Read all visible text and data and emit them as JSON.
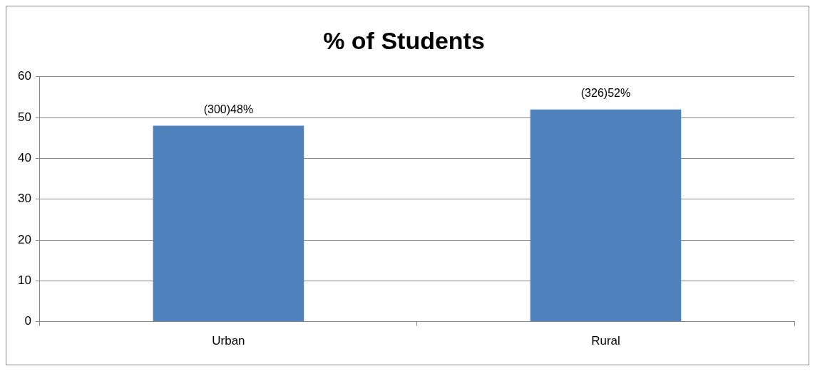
{
  "chart_data": {
    "type": "bar",
    "title": "% of Students",
    "categories": [
      "Urban",
      "Rural"
    ],
    "series": [
      {
        "color": "#4f81bd",
        "values": [
          48,
          52
        ],
        "value_labels": [
          "(300)48%",
          "(326)52%"
        ]
      }
    ],
    "ylim": [
      0,
      60
    ],
    "yticks": [
      0,
      10,
      20,
      30,
      40,
      50,
      60
    ],
    "grid": "y",
    "legend": false
  }
}
